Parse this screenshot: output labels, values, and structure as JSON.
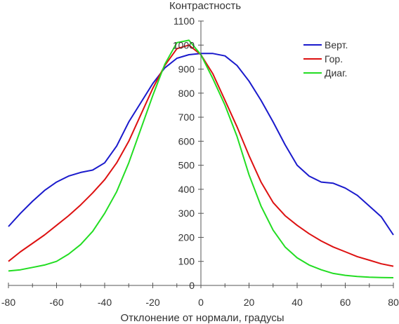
{
  "chart_data": {
    "type": "line",
    "title": "Контрастность",
    "xlabel": "Отклонение от нормали, градусы",
    "ylabel": "",
    "xlim": [
      -80,
      80
    ],
    "ylim": [
      0,
      1100
    ],
    "x_ticks": [
      -80,
      -60,
      -40,
      -20,
      0,
      20,
      40,
      60,
      80
    ],
    "y_ticks": [
      0,
      100,
      200,
      300,
      400,
      500,
      600,
      700,
      800,
      900,
      1000,
      1100
    ],
    "grid": false,
    "legend_position": "top-right",
    "series": [
      {
        "name": "Верт.",
        "color": "#1a1acc",
        "x": [
          -80,
          -75,
          -70,
          -65,
          -60,
          -55,
          -50,
          -45,
          -40,
          -35,
          -30,
          -25,
          -20,
          -15,
          -10,
          -5,
          0,
          5,
          10,
          15,
          20,
          25,
          30,
          35,
          40,
          45,
          50,
          55,
          60,
          65,
          70,
          75,
          80
        ],
        "y": [
          245,
          300,
          350,
          395,
          430,
          455,
          470,
          480,
          510,
          580,
          680,
          760,
          840,
          905,
          945,
          960,
          965,
          965,
          955,
          915,
          850,
          770,
          680,
          585,
          500,
          455,
          430,
          425,
          405,
          375,
          330,
          285,
          210
        ]
      },
      {
        "name": "Гор.",
        "color": "#dd1111",
        "x": [
          -80,
          -75,
          -70,
          -65,
          -60,
          -55,
          -50,
          -45,
          -40,
          -35,
          -30,
          -25,
          -20,
          -15,
          -10,
          -5,
          0,
          5,
          10,
          15,
          20,
          25,
          30,
          35,
          40,
          45,
          50,
          55,
          60,
          65,
          70,
          75,
          80
        ],
        "y": [
          100,
          140,
          175,
          210,
          250,
          290,
          335,
          385,
          440,
          510,
          600,
          710,
          820,
          915,
          985,
          1000,
          960,
          880,
          770,
          660,
          540,
          430,
          345,
          290,
          250,
          215,
          185,
          160,
          140,
          120,
          105,
          90,
          80
        ]
      },
      {
        "name": "Диаг.",
        "color": "#22dd22",
        "x": [
          -80,
          -75,
          -70,
          -65,
          -60,
          -55,
          -50,
          -45,
          -40,
          -35,
          -30,
          -25,
          -20,
          -15,
          -10,
          -5,
          0,
          5,
          10,
          15,
          20,
          25,
          30,
          35,
          40,
          45,
          50,
          55,
          60,
          65,
          70,
          75,
          80
        ],
        "y": [
          60,
          65,
          75,
          85,
          100,
          130,
          170,
          225,
          300,
          390,
          510,
          650,
          790,
          920,
          1010,
          1020,
          960,
          860,
          750,
          620,
          460,
          330,
          230,
          160,
          115,
          85,
          65,
          50,
          42,
          37,
          34,
          33,
          32
        ]
      }
    ]
  }
}
